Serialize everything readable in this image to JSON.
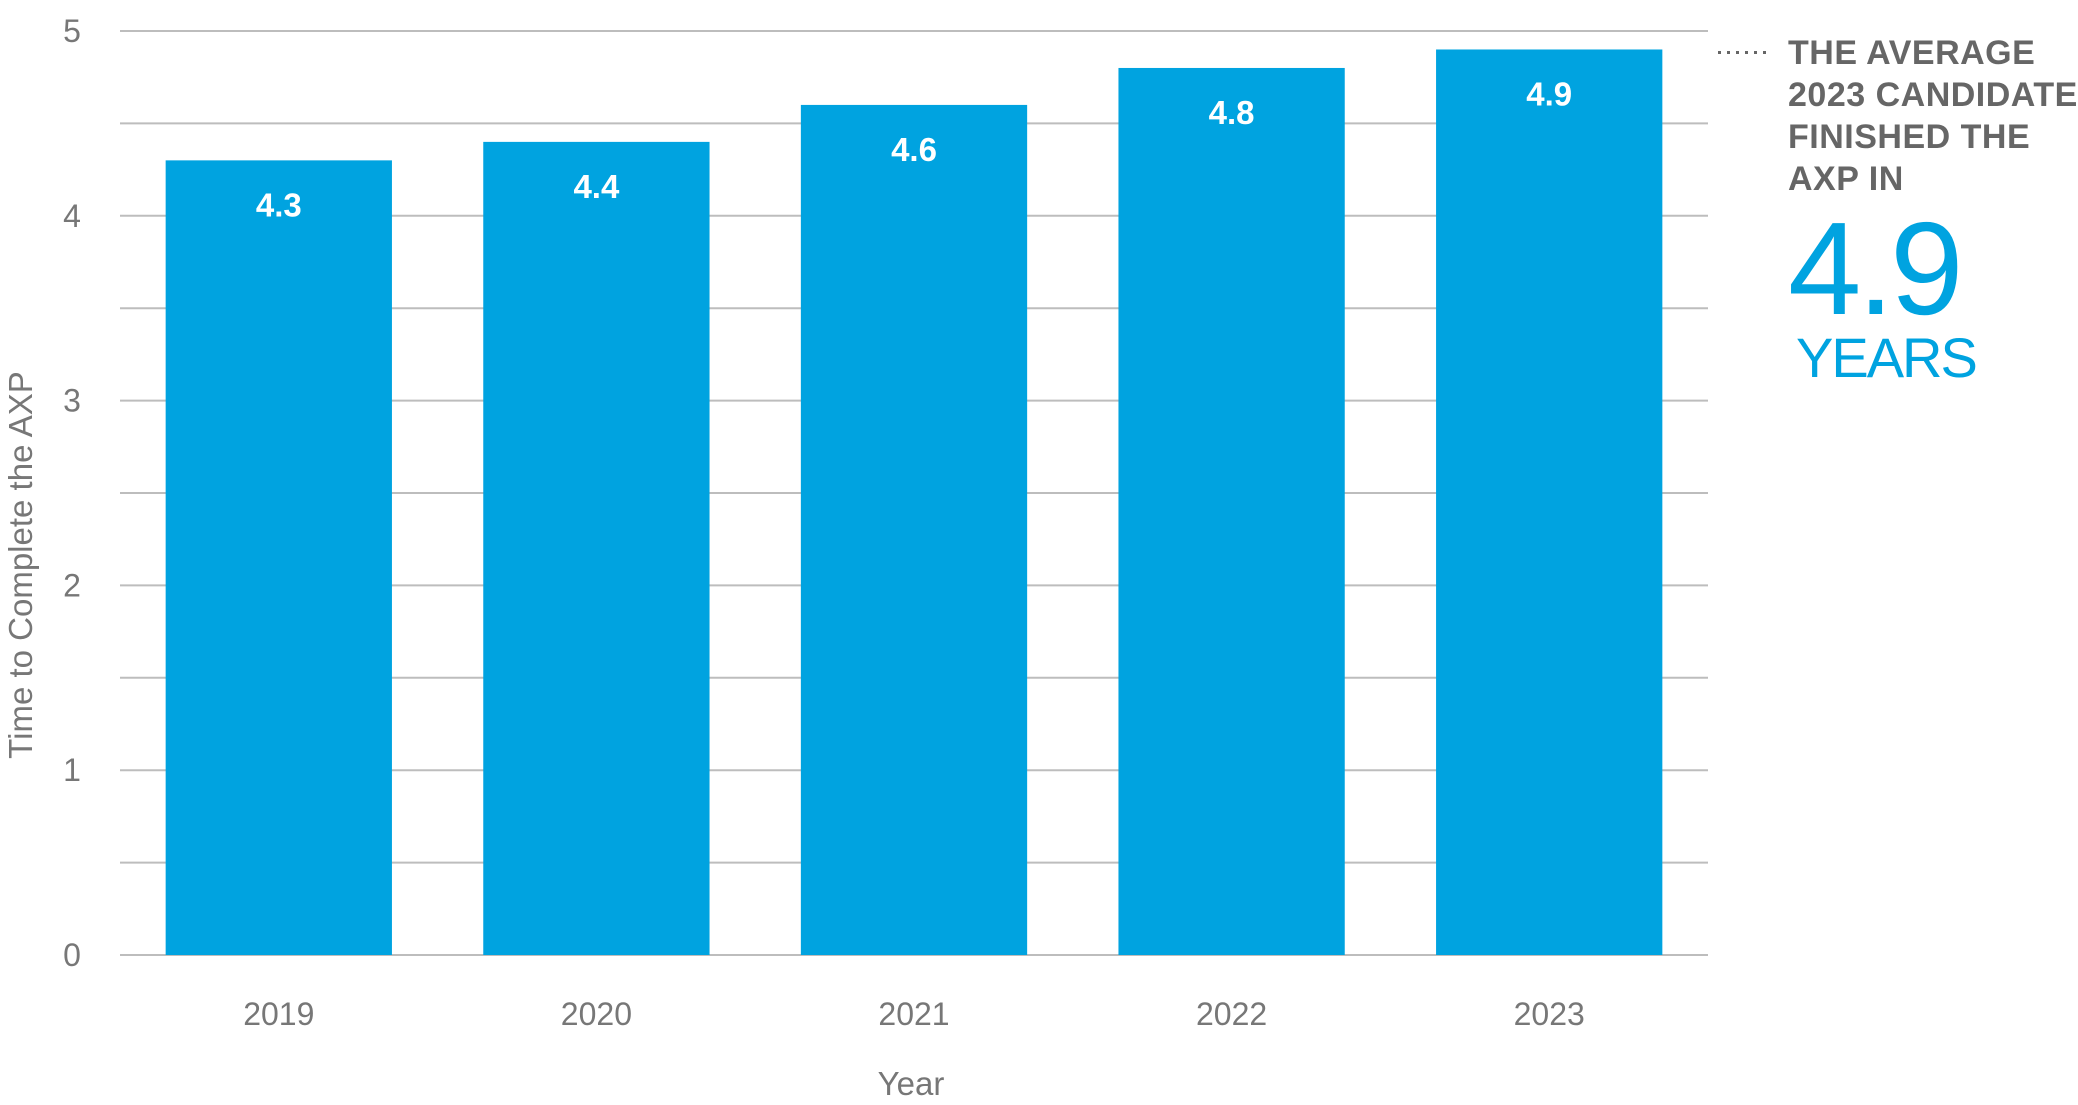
{
  "chart_data": {
    "type": "bar",
    "categories": [
      "2019",
      "2020",
      "2021",
      "2022",
      "2023"
    ],
    "values": [
      4.3,
      4.4,
      4.6,
      4.8,
      4.9
    ],
    "value_labels": [
      "4.3",
      "4.4",
      "4.6",
      "4.8",
      "4.9"
    ],
    "title": "",
    "xlabel": "Year",
    "ylabel": "Time to Complete the AXP",
    "ylim": [
      0,
      5
    ],
    "yticks": [
      0,
      1,
      2,
      3,
      4,
      5
    ],
    "ytick_labels": [
      "0",
      "1",
      "2",
      "3",
      "4",
      "5"
    ],
    "minor_gridlines": [
      0.5,
      1.5,
      2.5,
      3.5,
      4.5
    ],
    "bar_color": "#00a3e0",
    "grid_color": "#bdbdbd"
  },
  "callout": {
    "line1": "THE AVERAGE",
    "line2": "2023 CANDIDATE",
    "line3": "FINISHED THE",
    "line4": "AXP IN",
    "value": "4.9",
    "unit": "YEARS",
    "accent_color": "#00a3e0"
  }
}
